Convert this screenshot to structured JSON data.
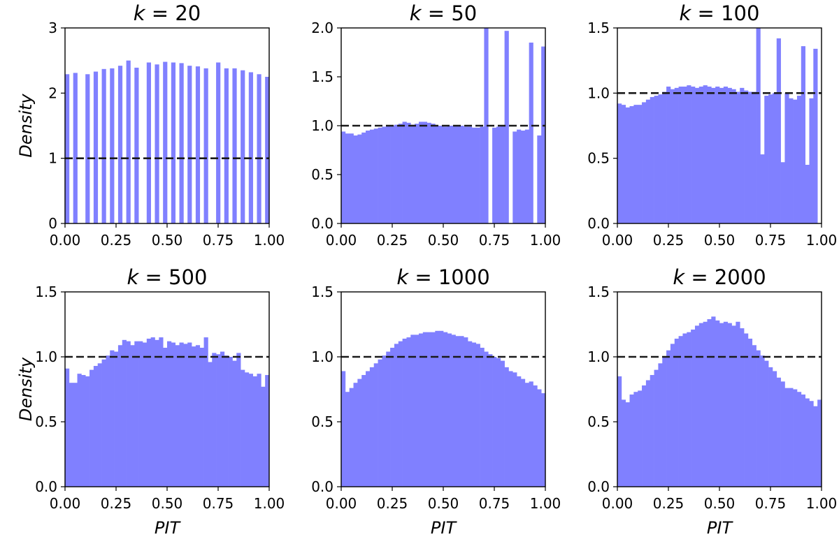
{
  "colors": {
    "bar": "#8080ff",
    "reference_line": "#1a1a1a",
    "axes": "#000000"
  },
  "chart_data": [
    {
      "type": "bar",
      "title": "k = 20",
      "title_var": "k",
      "title_value": "20",
      "xlabel": "",
      "ylabel": "Density",
      "xlim": [
        0,
        1
      ],
      "ylim": [
        0,
        3
      ],
      "xticks": [
        "0.00",
        "0.25",
        "0.50",
        "0.75",
        "1.00"
      ],
      "yticks": [
        "0",
        "1",
        "2",
        "3"
      ],
      "bins": 50,
      "reference_line": 1.0,
      "values": [
        2.29,
        0,
        2.31,
        0,
        0,
        2.29,
        0,
        2.33,
        0,
        2.37,
        0,
        2.38,
        0,
        2.42,
        0,
        2.5,
        0,
        2.39,
        0,
        0,
        2.47,
        0,
        2.44,
        0,
        2.48,
        0,
        2.47,
        0,
        2.46,
        0,
        2.42,
        0,
        2.41,
        0,
        2.38,
        0,
        0,
        2.47,
        0,
        2.38,
        0,
        2.38,
        0,
        2.35,
        0,
        2.32,
        0,
        2.29,
        0,
        2.25
      ]
    },
    {
      "type": "bar",
      "title": "k = 50",
      "title_var": "k",
      "title_value": "50",
      "xlabel": "",
      "ylabel": "",
      "xlim": [
        0,
        1
      ],
      "ylim": [
        0,
        2
      ],
      "xticks": [
        "0.00",
        "0.25",
        "0.50",
        "0.75",
        "1.00"
      ],
      "yticks": [
        "0.0",
        "0.5",
        "1.0",
        "1.5",
        "2.0"
      ],
      "bins": 50,
      "reference_line": 1.0,
      "values": [
        0.94,
        0.92,
        0.92,
        0.9,
        0.91,
        0.93,
        0.95,
        0.96,
        0.97,
        0.98,
        0.99,
        1.0,
        1.0,
        1.01,
        1.02,
        1.04,
        1.03,
        1.01,
        1.02,
        1.04,
        1.04,
        1.03,
        1.02,
        1.0,
        1.0,
        0.99,
        1.0,
        1.0,
        1.0,
        1.0,
        0.99,
        0.99,
        0.98,
        0.98,
        0.99,
        2.0,
        0,
        0.98,
        0.99,
        1.0,
        1.97,
        0,
        0.94,
        0.96,
        0.95,
        0.96,
        1.85,
        0,
        0.9,
        1.81
      ]
    },
    {
      "type": "bar",
      "title": "k = 100",
      "title_var": "k",
      "title_value": "100",
      "xlabel": "",
      "ylabel": "",
      "xlim": [
        0,
        1
      ],
      "ylim": [
        0,
        1.5
      ],
      "xticks": [
        "0.00",
        "0.25",
        "0.50",
        "0.75",
        "1.00"
      ],
      "yticks": [
        "0.0",
        "0.5",
        "1.0",
        "1.5"
      ],
      "bins": 50,
      "reference_line": 1.0,
      "values": [
        0.92,
        0.91,
        0.89,
        0.9,
        0.91,
        0.91,
        0.93,
        0.95,
        0.97,
        0.98,
        0.99,
        1.01,
        1.05,
        1.03,
        1.04,
        1.05,
        1.05,
        1.06,
        1.05,
        1.04,
        1.05,
        1.06,
        1.05,
        1.04,
        1.05,
        1.04,
        1.05,
        1.04,
        1.03,
        1.01,
        1.04,
        1.02,
        1.01,
        1.01,
        1.5,
        0.53,
        0.98,
        0.99,
        1.0,
        1.42,
        0.47,
        1.0,
        0.96,
        0.95,
        0.98,
        1.36,
        0.45,
        0.96,
        1.34,
        0
      ]
    },
    {
      "type": "bar",
      "title": "k = 500",
      "title_var": "k",
      "title_value": "500",
      "xlabel": "PIT",
      "ylabel": "Density",
      "xlim": [
        0,
        1
      ],
      "ylim": [
        0,
        1.5
      ],
      "xticks": [
        "0.00",
        "0.25",
        "0.50",
        "0.75",
        "1.00"
      ],
      "yticks": [
        "0.0",
        "0.5",
        "1.0",
        "1.5"
      ],
      "bins": 50,
      "reference_line": 1.0,
      "values": [
        0.91,
        0.8,
        0.8,
        0.87,
        0.86,
        0.85,
        0.9,
        0.93,
        0.95,
        0.98,
        1.01,
        1.05,
        1.04,
        1.09,
        1.13,
        1.12,
        1.09,
        1.12,
        1.12,
        1.11,
        1.14,
        1.15,
        1.13,
        1.15,
        1.07,
        1.12,
        1.11,
        1.09,
        1.11,
        1.1,
        1.11,
        1.08,
        1.09,
        1.07,
        1.15,
        0.96,
        1.03,
        1.02,
        1.04,
        1.01,
        1.0,
        0.97,
        1.03,
        0.9,
        0.88,
        0.87,
        0.85,
        0.87,
        0.77,
        0.86
      ]
    },
    {
      "type": "bar",
      "title": "k = 1000",
      "title_var": "k",
      "title_value": "1000",
      "xlabel": "PIT",
      "ylabel": "",
      "xlim": [
        0,
        1
      ],
      "ylim": [
        0,
        1.5
      ],
      "xticks": [
        "0.00",
        "0.25",
        "0.50",
        "0.75",
        "1.00"
      ],
      "yticks": [
        "0.0",
        "0.5",
        "1.0",
        "1.5"
      ],
      "bins": 50,
      "reference_line": 1.0,
      "values": [
        0.89,
        0.73,
        0.76,
        0.8,
        0.83,
        0.86,
        0.89,
        0.92,
        0.95,
        0.98,
        1.01,
        1.04,
        1.07,
        1.1,
        1.12,
        1.14,
        1.15,
        1.17,
        1.17,
        1.18,
        1.19,
        1.19,
        1.19,
        1.2,
        1.2,
        1.19,
        1.18,
        1.17,
        1.16,
        1.16,
        1.15,
        1.12,
        1.11,
        1.1,
        1.07,
        1.04,
        1.02,
        1.0,
        0.99,
        0.97,
        0.92,
        0.89,
        0.88,
        0.85,
        0.83,
        0.8,
        0.81,
        0.78,
        0.75,
        0.72
      ]
    },
    {
      "type": "bar",
      "title": "k = 2000",
      "title_var": "k",
      "title_value": "2000",
      "xlabel": "PIT",
      "ylabel": "",
      "xlim": [
        0,
        1
      ],
      "ylim": [
        0,
        1.5
      ],
      "xticks": [
        "0.00",
        "0.25",
        "0.50",
        "0.75",
        "1.00"
      ],
      "yticks": [
        "0.0",
        "0.5",
        "1.0",
        "1.5"
      ],
      "bins": 50,
      "reference_line": 1.0,
      "values": [
        0.85,
        0.67,
        0.65,
        0.71,
        0.73,
        0.74,
        0.78,
        0.82,
        0.86,
        0.9,
        0.95,
        1.0,
        1.05,
        1.1,
        1.14,
        1.16,
        1.18,
        1.19,
        1.21,
        1.24,
        1.26,
        1.27,
        1.29,
        1.31,
        1.28,
        1.26,
        1.27,
        1.26,
        1.24,
        1.27,
        1.22,
        1.18,
        1.14,
        1.09,
        1.05,
        1.01,
        0.97,
        0.92,
        0.89,
        0.84,
        0.81,
        0.76,
        0.76,
        0.75,
        0.73,
        0.71,
        0.68,
        0.66,
        0.62,
        0.67
      ]
    }
  ]
}
